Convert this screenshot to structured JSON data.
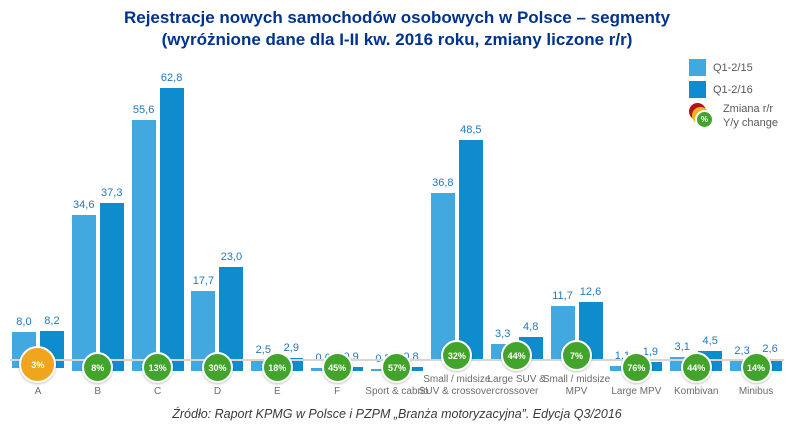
{
  "title": {
    "line1": "Rejestracje nowych samochodów osobowych w Polsce – segmenty",
    "line2": "(wyróżnione dane dla I-II kw. 2016 roku, zmiany liczone r/r)"
  },
  "legend": {
    "q15_label": "Q1-2/15",
    "q16_label": "Q1-2/16",
    "change_label_pl": "Zmiana r/r",
    "change_label_en": "Y/y change",
    "change_icon_symbol": "%"
  },
  "footer": {
    "source": "Źródło: Raport KPMG w Polsce i PZPM „Branża motoryzacyjna”. Edycja Q3/2016"
  },
  "colors": {
    "title_blue": "#00338D",
    "bar_light_blue": "#41A9E0",
    "bar_dark_blue": "#0E8CCE",
    "value_label_blue": "#2377BE",
    "badge_green": "#43A42C",
    "badge_orange": "#F0A51E",
    "legend_icon_red": "#B3121B",
    "legend_icon_yellow": "#F2B21E"
  },
  "chart_data": {
    "type": "bar",
    "title": "Rejestracje nowych samochodów osobowych w Polsce – segmenty",
    "subtitle": "(wyróżnione dane dla I-II kw. 2016 roku, zmiany liczone r/r)",
    "categories": [
      "A",
      "B",
      "C",
      "D",
      "E",
      "F",
      "Sport & cabrio",
      "Small / midsize SUV & crossover",
      "Large SUV & crossover",
      "Small / midsize MPV",
      "Large MPV",
      "Kombivan",
      "Minibus"
    ],
    "series": [
      {
        "name": "Q1-2/15",
        "values": [
          8.0,
          34.6,
          55.6,
          17.7,
          2.5,
          0.6,
          0.5,
          36.8,
          3.3,
          11.7,
          1.1,
          3.1,
          2.3
        ]
      },
      {
        "name": "Q1-2/16",
        "values": [
          8.2,
          37.3,
          62.8,
          23.0,
          2.9,
          0.9,
          0.8,
          48.5,
          4.8,
          12.6,
          1.9,
          4.5,
          2.6
        ]
      }
    ],
    "changes": [
      "3%",
      "8%",
      "13%",
      "30%",
      "18%",
      "45%",
      "57%",
      "32%",
      "44%",
      "7%",
      "76%",
      "44%",
      "14%"
    ],
    "change_highlight_index": 0,
    "decimal_separator": ",",
    "xlabel": "",
    "ylabel": "",
    "ylim": [
      0,
      65
    ],
    "grid": false,
    "legend_position": "top-right"
  }
}
